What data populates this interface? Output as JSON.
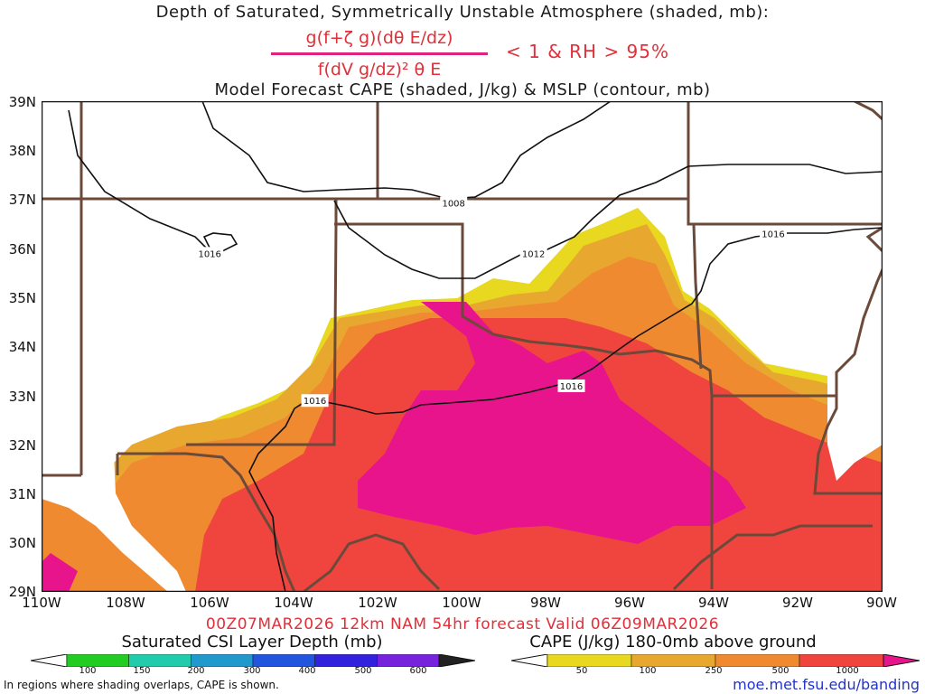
{
  "header": {
    "title_line1": "Depth of Saturated, Symmetrically Unstable Atmosphere (shaded, mb):",
    "numerator": "g(f+ζ g)(dθ E/dz)",
    "denominator": "f(dV g/dz)² θ E",
    "condition": "< 1 & RH > 95%",
    "title_line3": "Model Forecast CAPE (shaded, J/kg) & MSLP (contour, mb)"
  },
  "axes": {
    "lat_labels": [
      "39N",
      "38N",
      "37N",
      "36N",
      "35N",
      "34N",
      "33N",
      "32N",
      "31N",
      "30N",
      "29N"
    ],
    "lon_labels": [
      "110W",
      "108W",
      "106W",
      "104W",
      "102W",
      "100W",
      "98W",
      "96W",
      "94W",
      "92W",
      "90W"
    ]
  },
  "map": {
    "lat_range": [
      29,
      39
    ],
    "lon_range": [
      -110,
      -90
    ],
    "isobars": [
      {
        "label": "1008",
        "lon": -100.2,
        "lat": 36.93
      },
      {
        "label": "1012",
        "lon": -98.3,
        "lat": 35.9
      },
      {
        "label": "1016",
        "lon": -106.0,
        "lat": 35.9
      },
      {
        "label": "1016",
        "lon": -92.6,
        "lat": 36.3
      },
      {
        "label": "1016",
        "lon": -97.4,
        "lat": 33.2
      },
      {
        "label": "1016",
        "lon": -103.5,
        "lat": 32.9
      }
    ]
  },
  "forecast": {
    "valid_text": "00Z07MAR2026 12km NAM 54hr forecast Valid 06Z09MAR2026"
  },
  "legend": {
    "csi_title": "Saturated CSI Layer Depth (mb)",
    "csi_ticks": [
      "100",
      "150",
      "200",
      "300",
      "400",
      "500",
      "600"
    ],
    "csi_colors": [
      "#ffffff",
      "#22cc22",
      "#22ccaa",
      "#2299cc",
      "#2255dd",
      "#3322dd",
      "#7722dd",
      "#222222"
    ],
    "cape_title": "CAPE (J/kg) 180-0mb above ground",
    "cape_ticks": [
      "50",
      "100",
      "250",
      "500",
      "1000"
    ],
    "cape_colors": [
      "#ffffff",
      "#e8d820",
      "#e8a830",
      "#f08a30",
      "#f0453f",
      "#e8148c"
    ]
  },
  "footer": {
    "note": "In regions where shading overlaps, CAPE is shown.",
    "credit": "moe.met.fsu.edu/banding"
  },
  "colors": {
    "cape_50": "#e8d820",
    "cape_100": "#e8a830",
    "cape_250": "#f08a30",
    "cape_500": "#f0453f",
    "cape_1000": "#e8148c",
    "boundary": "#6b4a3a",
    "text_red": "#e0303a"
  }
}
